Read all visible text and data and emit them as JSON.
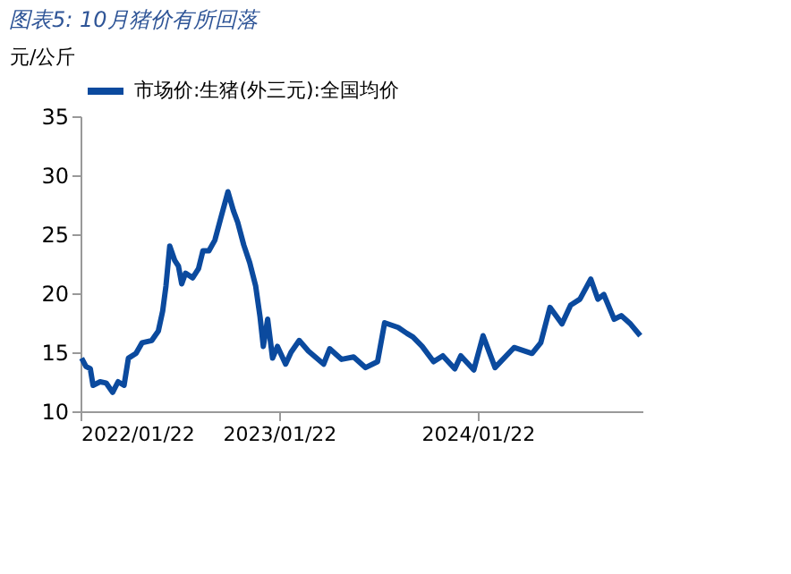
{
  "chart_data": {
    "type": "line",
    "title": "图表5: 10月猪价有所回落",
    "ylabel": "元/公斤",
    "x": [
      "2022-01-24",
      "2022-02-01",
      "2022-02-09",
      "2022-02-14",
      "2022-02-27",
      "2022-03-10",
      "2022-03-22",
      "2022-04-01",
      "2022-04-12",
      "2022-04-20",
      "2022-05-04",
      "2022-05-15",
      "2022-06-02",
      "2022-06-14",
      "2022-06-22",
      "2022-06-28",
      "2022-07-05",
      "2022-07-14",
      "2022-07-21",
      "2022-07-27",
      "2022-08-03",
      "2022-08-16",
      "2022-08-27",
      "2022-09-04",
      "2022-09-15",
      "2022-09-26",
      "2022-10-07",
      "2022-10-20",
      "2022-10-30",
      "2022-11-07",
      "2022-11-18",
      "2022-11-29",
      "2022-12-10",
      "2022-12-18",
      "2022-12-24",
      "2023-01-01",
      "2023-01-10",
      "2023-01-19",
      "2023-02-03",
      "2023-02-13",
      "2023-02-28",
      "2023-03-17",
      "2023-04-14",
      "2023-04-25",
      "2023-05-17",
      "2023-06-08",
      "2023-06-30",
      "2023-07-22",
      "2023-08-04",
      "2023-08-29",
      "2023-09-14",
      "2023-09-25",
      "2023-10-12",
      "2023-11-02",
      "2023-11-19",
      "2023-12-11",
      "2023-12-22",
      "2024-01-15",
      "2024-02-01",
      "2024-02-23",
      "2024-03-29",
      "2024-05-01",
      "2024-05-17",
      "2024-06-03",
      "2024-06-25",
      "2024-07-11",
      "2024-07-28",
      "2024-08-17",
      "2024-08-30",
      "2024-09-10",
      "2024-09-29",
      "2024-10-12",
      "2024-10-29",
      "2024-11-16"
    ],
    "series": [
      {
        "name": "市场价:生猪(外三元):全国均价",
        "color": "#0b4a9e",
        "values": [
          14.5,
          13.8,
          13.6,
          12.2,
          12.5,
          12.4,
          11.6,
          12.5,
          12.2,
          14.5,
          14.9,
          15.8,
          16.0,
          16.8,
          18.5,
          20.6,
          24.0,
          22.8,
          22.3,
          20.8,
          21.7,
          21.3,
          22.1,
          23.6,
          23.6,
          24.5,
          26.4,
          28.6,
          27.0,
          26.0,
          24.1,
          22.6,
          20.6,
          18.0,
          15.5,
          17.8,
          14.5,
          15.5,
          14.0,
          15.0,
          16.0,
          15.1,
          14.0,
          15.3,
          14.4,
          14.6,
          13.7,
          14.2,
          17.5,
          17.1,
          16.6,
          16.3,
          15.5,
          14.2,
          14.7,
          13.6,
          14.7,
          13.5,
          16.4,
          13.7,
          15.4,
          14.9,
          15.8,
          18.8,
          17.4,
          19.0,
          19.5,
          21.2,
          19.5,
          19.9,
          17.8,
          18.1,
          17.4,
          16.4
        ]
      }
    ],
    "xlim": [
      "2022-01-22",
      "2024-11-20"
    ],
    "xticks": [
      {
        "value": "2022-01-22",
        "label": "2022/01/22"
      },
      {
        "value": "2023-01-22",
        "label": "2023/01/22"
      },
      {
        "value": "2024-01-22",
        "label": "2024/01/22"
      }
    ],
    "ylim": [
      10,
      35
    ],
    "yticks": [
      10,
      15,
      20,
      25,
      30,
      35
    ],
    "grid": false,
    "legend": "top",
    "line_style": "solid",
    "marker": "none"
  }
}
